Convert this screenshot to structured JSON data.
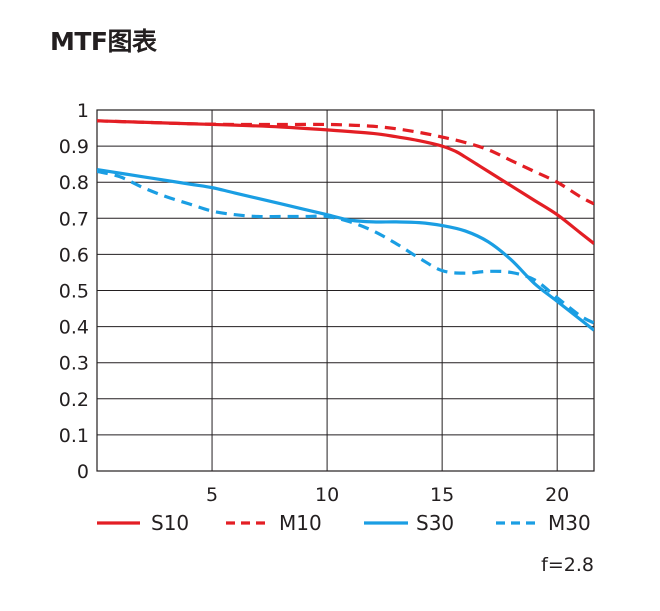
{
  "chart_data": {
    "type": "line",
    "title": "MTF图表",
    "xlabel": "",
    "ylabel": "",
    "xlim": [
      0,
      21.6
    ],
    "ylim": [
      0,
      1
    ],
    "x_ticks": [
      5,
      10,
      15,
      20
    ],
    "y_ticks": [
      0,
      0.1,
      0.2,
      0.3,
      0.4,
      0.5,
      0.6,
      0.7,
      0.8,
      0.9,
      1
    ],
    "y_tick_labels": [
      "0",
      "0.1",
      "0.2",
      "0.3",
      "0.4",
      "0.5",
      "0.6",
      "0.7",
      "0.8",
      "0.9",
      "1"
    ],
    "grid": true,
    "legend_position": "bottom",
    "annotation": "f=2.8",
    "series": [
      {
        "name": "S10",
        "color": "#e31e24",
        "dash": "solid",
        "x": [
          0,
          2,
          4,
          6,
          8,
          10,
          12,
          13,
          14,
          15,
          15.6,
          16,
          16.5,
          17,
          18,
          19,
          20,
          21,
          21.6
        ],
        "y": [
          0.97,
          0.966,
          0.962,
          0.958,
          0.953,
          0.945,
          0.935,
          0.926,
          0.915,
          0.9,
          0.885,
          0.87,
          0.85,
          0.83,
          0.79,
          0.75,
          0.71,
          0.66,
          0.63
        ]
      },
      {
        "name": "M10",
        "color": "#e31e24",
        "dash": "dashed",
        "x": [
          0,
          2,
          4,
          6,
          8,
          10,
          11,
          12,
          13,
          14,
          15,
          16,
          17,
          18,
          19,
          20,
          21,
          21.6
        ],
        "y": [
          0.97,
          0.966,
          0.962,
          0.96,
          0.96,
          0.96,
          0.958,
          0.955,
          0.948,
          0.938,
          0.925,
          0.91,
          0.89,
          0.86,
          0.83,
          0.8,
          0.76,
          0.74
        ]
      },
      {
        "name": "S30",
        "color": "#1a9ee3",
        "dash": "solid",
        "x": [
          0,
          2,
          4,
          5,
          6,
          8,
          9,
          10,
          11,
          12,
          13,
          14,
          15,
          16,
          17,
          18,
          19,
          20,
          21,
          21.6
        ],
        "y": [
          0.835,
          0.815,
          0.795,
          0.785,
          0.77,
          0.74,
          0.725,
          0.71,
          0.695,
          0.69,
          0.69,
          0.688,
          0.68,
          0.665,
          0.635,
          0.585,
          0.52,
          0.47,
          0.42,
          0.39
        ]
      },
      {
        "name": "M30",
        "color": "#1a9ee3",
        "dash": "dashed",
        "x": [
          0,
          1,
          2,
          3,
          4,
          5,
          6,
          7,
          8,
          9,
          10,
          11,
          12,
          13,
          14,
          15,
          16,
          17,
          18,
          19,
          20,
          21,
          21.6
        ],
        "y": [
          0.83,
          0.815,
          0.785,
          0.76,
          0.74,
          0.72,
          0.71,
          0.705,
          0.705,
          0.705,
          0.705,
          0.69,
          0.665,
          0.63,
          0.59,
          0.555,
          0.548,
          0.553,
          0.55,
          0.53,
          0.48,
          0.43,
          0.41
        ]
      }
    ]
  }
}
